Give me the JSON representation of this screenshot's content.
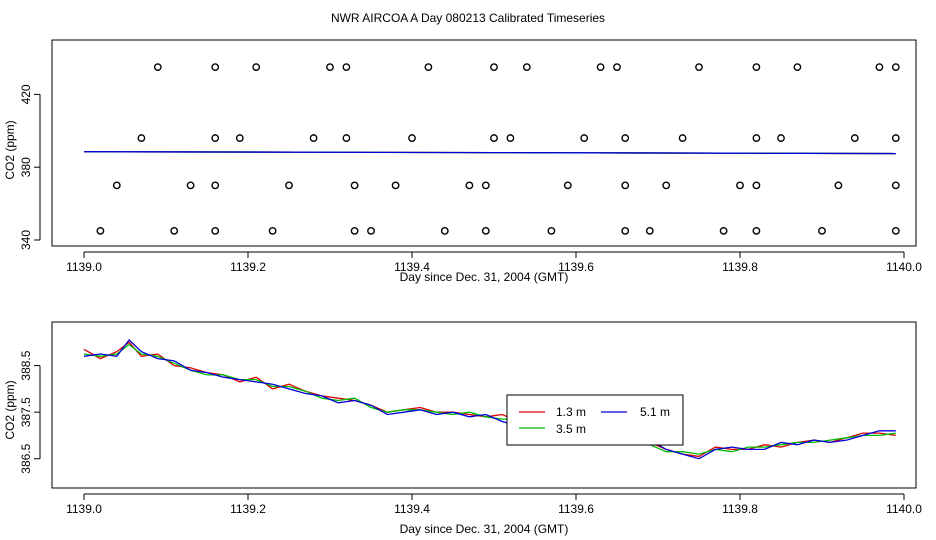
{
  "title": "NWR AIRCOA A  Day 080213  Calibrated Timeseries",
  "colors": {
    "series_1_3": "#dd0000",
    "series_3_5": "#00bb00",
    "series_5_1": "#0000dd",
    "axis": "#000000"
  },
  "chart_data": [
    {
      "type": "scatter",
      "xlabel": "Day since Dec. 31, 2004 (GMT)",
      "ylabel": "CO2 (ppm)",
      "xlim": [
        1139.0,
        1140.0
      ],
      "ylim": [
        340,
        440
      ],
      "xticks": [
        "1139.0",
        "1139.2",
        "1139.4",
        "1139.6",
        "1139.8",
        "1140.0"
      ],
      "yticks": [
        "340",
        "380",
        "420"
      ],
      "grid": false,
      "calibration_points": [
        {
          "x": 1139.09,
          "y": 435
        },
        {
          "x": 1139.16,
          "y": 435
        },
        {
          "x": 1139.21,
          "y": 435
        },
        {
          "x": 1139.3,
          "y": 435
        },
        {
          "x": 1139.32,
          "y": 435
        },
        {
          "x": 1139.42,
          "y": 435
        },
        {
          "x": 1139.5,
          "y": 435
        },
        {
          "x": 1139.54,
          "y": 435
        },
        {
          "x": 1139.63,
          "y": 435
        },
        {
          "x": 1139.65,
          "y": 435
        },
        {
          "x": 1139.75,
          "y": 435
        },
        {
          "x": 1139.82,
          "y": 435
        },
        {
          "x": 1139.87,
          "y": 435
        },
        {
          "x": 1139.97,
          "y": 435
        },
        {
          "x": 1139.99,
          "y": 435
        },
        {
          "x": 1139.07,
          "y": 396
        },
        {
          "x": 1139.16,
          "y": 396
        },
        {
          "x": 1139.19,
          "y": 396
        },
        {
          "x": 1139.28,
          "y": 396
        },
        {
          "x": 1139.32,
          "y": 396
        },
        {
          "x": 1139.4,
          "y": 396
        },
        {
          "x": 1139.5,
          "y": 396
        },
        {
          "x": 1139.52,
          "y": 396
        },
        {
          "x": 1139.61,
          "y": 396
        },
        {
          "x": 1139.66,
          "y": 396
        },
        {
          "x": 1139.73,
          "y": 396
        },
        {
          "x": 1139.82,
          "y": 396
        },
        {
          "x": 1139.85,
          "y": 396
        },
        {
          "x": 1139.94,
          "y": 396
        },
        {
          "x": 1139.99,
          "y": 396
        },
        {
          "x": 1139.04,
          "y": 370
        },
        {
          "x": 1139.13,
          "y": 370
        },
        {
          "x": 1139.16,
          "y": 370
        },
        {
          "x": 1139.25,
          "y": 370
        },
        {
          "x": 1139.33,
          "y": 370
        },
        {
          "x": 1139.38,
          "y": 370
        },
        {
          "x": 1139.47,
          "y": 370
        },
        {
          "x": 1139.49,
          "y": 370
        },
        {
          "x": 1139.59,
          "y": 370
        },
        {
          "x": 1139.66,
          "y": 370
        },
        {
          "x": 1139.71,
          "y": 370
        },
        {
          "x": 1139.8,
          "y": 370
        },
        {
          "x": 1139.82,
          "y": 370
        },
        {
          "x": 1139.92,
          "y": 370
        },
        {
          "x": 1139.99,
          "y": 370
        },
        {
          "x": 1139.02,
          "y": 345
        },
        {
          "x": 1139.11,
          "y": 345
        },
        {
          "x": 1139.16,
          "y": 345
        },
        {
          "x": 1139.23,
          "y": 345
        },
        {
          "x": 1139.33,
          "y": 345
        },
        {
          "x": 1139.35,
          "y": 345
        },
        {
          "x": 1139.44,
          "y": 345
        },
        {
          "x": 1139.49,
          "y": 345
        },
        {
          "x": 1139.57,
          "y": 345
        },
        {
          "x": 1139.66,
          "y": 345
        },
        {
          "x": 1139.69,
          "y": 345
        },
        {
          "x": 1139.78,
          "y": 345
        },
        {
          "x": 1139.82,
          "y": 345
        },
        {
          "x": 1139.9,
          "y": 345
        },
        {
          "x": 1139.99,
          "y": 345
        }
      ],
      "series": [
        {
          "name": "1.3 m",
          "color": "#dd0000",
          "x": [
            1139.0,
            1139.5,
            1139.99
          ],
          "y": [
            388.5,
            388.0,
            387.5
          ]
        },
        {
          "name": "3.5 m",
          "color": "#00bb00",
          "x": [
            1139.0,
            1139.5,
            1139.99
          ],
          "y": [
            388.5,
            388.0,
            387.5
          ]
        },
        {
          "name": "5.1 m",
          "color": "#0000dd",
          "x": [
            1139.0,
            1139.5,
            1139.99
          ],
          "y": [
            388.5,
            388.0,
            387.5
          ]
        }
      ]
    },
    {
      "type": "line",
      "xlabel": "Day since Dec. 31, 2004 (GMT)",
      "ylabel": "CO2 (ppm)",
      "xlim": [
        1139.0,
        1140.0
      ],
      "ylim": [
        386.0,
        389.2
      ],
      "xticks": [
        "1139.0",
        "1139.2",
        "1139.4",
        "1139.6",
        "1139.8",
        "1140.0"
      ],
      "yticks": [
        "386.5",
        "387.5",
        "388.5"
      ],
      "grid": false,
      "legend": "center-right",
      "series": [
        {
          "name": "1.3 m",
          "color": "#dd0000",
          "x": [
            1139.0,
            1139.02,
            1139.04,
            1139.055,
            1139.07,
            1139.09,
            1139.11,
            1139.13,
            1139.15,
            1139.17,
            1139.19,
            1139.21,
            1139.23,
            1139.25,
            1139.27,
            1139.29,
            1139.31,
            1139.33,
            1139.35,
            1139.37,
            1139.39,
            1139.41,
            1139.43,
            1139.45,
            1139.47,
            1139.49,
            1139.51,
            1139.53,
            1139.55,
            1139.57,
            1139.59,
            1139.61,
            1139.63,
            1139.65,
            1139.67,
            1139.69,
            1139.71,
            1139.73,
            1139.75,
            1139.77,
            1139.79,
            1139.81,
            1139.83,
            1139.85,
            1139.87,
            1139.89,
            1139.91,
            1139.93,
            1139.95,
            1139.97,
            1139.99
          ],
          "y": [
            388.85,
            388.65,
            388.8,
            389.0,
            388.7,
            388.75,
            388.5,
            388.45,
            388.35,
            388.3,
            388.15,
            388.25,
            388.0,
            388.1,
            387.95,
            387.85,
            387.8,
            387.75,
            387.65,
            387.5,
            387.55,
            387.6,
            387.5,
            387.5,
            387.45,
            387.4,
            387.45,
            387.3,
            387.35,
            387.25,
            387.2,
            387.35,
            387.15,
            387.0,
            386.9,
            386.85,
            386.7,
            386.6,
            386.55,
            386.75,
            386.7,
            386.7,
            386.8,
            386.75,
            386.85,
            386.9,
            386.85,
            386.95,
            387.05,
            387.05,
            387.0
          ]
        },
        {
          "name": "3.5 m",
          "color": "#00bb00",
          "x": [
            1139.0,
            1139.02,
            1139.04,
            1139.055,
            1139.07,
            1139.09,
            1139.11,
            1139.13,
            1139.15,
            1139.17,
            1139.19,
            1139.21,
            1139.23,
            1139.25,
            1139.27,
            1139.29,
            1139.31,
            1139.33,
            1139.35,
            1139.37,
            1139.39,
            1139.41,
            1139.43,
            1139.45,
            1139.47,
            1139.49,
            1139.51,
            1139.53,
            1139.55,
            1139.57,
            1139.59,
            1139.61,
            1139.63,
            1139.65,
            1139.67,
            1139.69,
            1139.71,
            1139.73,
            1139.75,
            1139.77,
            1139.79,
            1139.81,
            1139.83,
            1139.85,
            1139.87,
            1139.89,
            1139.91,
            1139.93,
            1139.95,
            1139.97,
            1139.99
          ],
          "y": [
            388.75,
            388.7,
            388.75,
            388.95,
            388.75,
            388.7,
            388.55,
            388.4,
            388.3,
            388.3,
            388.2,
            388.2,
            388.05,
            388.05,
            387.95,
            387.8,
            387.75,
            387.8,
            387.6,
            387.5,
            387.55,
            387.55,
            387.5,
            387.45,
            387.5,
            387.4,
            387.35,
            387.35,
            387.3,
            387.25,
            387.2,
            387.3,
            387.15,
            386.95,
            386.9,
            386.8,
            386.65,
            386.65,
            386.6,
            386.7,
            386.65,
            386.75,
            386.75,
            386.8,
            386.85,
            386.85,
            386.9,
            386.95,
            387.0,
            387.0,
            387.05
          ]
        },
        {
          "name": "5.1 m",
          "color": "#0000dd",
          "x": [
            1139.0,
            1139.02,
            1139.04,
            1139.055,
            1139.07,
            1139.09,
            1139.11,
            1139.13,
            1139.15,
            1139.17,
            1139.19,
            1139.21,
            1139.23,
            1139.25,
            1139.27,
            1139.29,
            1139.31,
            1139.33,
            1139.35,
            1139.37,
            1139.39,
            1139.41,
            1139.43,
            1139.45,
            1139.47,
            1139.49,
            1139.51,
            1139.53,
            1139.55,
            1139.57,
            1139.59,
            1139.61,
            1139.63,
            1139.65,
            1139.67,
            1139.69,
            1139.71,
            1139.73,
            1139.75,
            1139.77,
            1139.79,
            1139.81,
            1139.83,
            1139.85,
            1139.87,
            1139.89,
            1139.91,
            1139.93,
            1139.95,
            1139.97,
            1139.99
          ],
          "y": [
            388.7,
            388.75,
            388.7,
            389.05,
            388.8,
            388.65,
            388.6,
            388.4,
            388.35,
            388.25,
            388.2,
            388.15,
            388.1,
            388.0,
            387.9,
            387.85,
            387.7,
            387.75,
            387.65,
            387.45,
            387.5,
            387.55,
            387.45,
            387.5,
            387.4,
            387.45,
            387.3,
            387.2,
            387.3,
            387.2,
            387.25,
            387.3,
            387.1,
            387.0,
            386.85,
            386.9,
            386.7,
            386.6,
            386.5,
            386.7,
            386.75,
            386.7,
            386.7,
            386.85,
            386.8,
            386.9,
            386.85,
            386.9,
            387.0,
            387.1,
            387.1
          ]
        }
      ]
    }
  ]
}
